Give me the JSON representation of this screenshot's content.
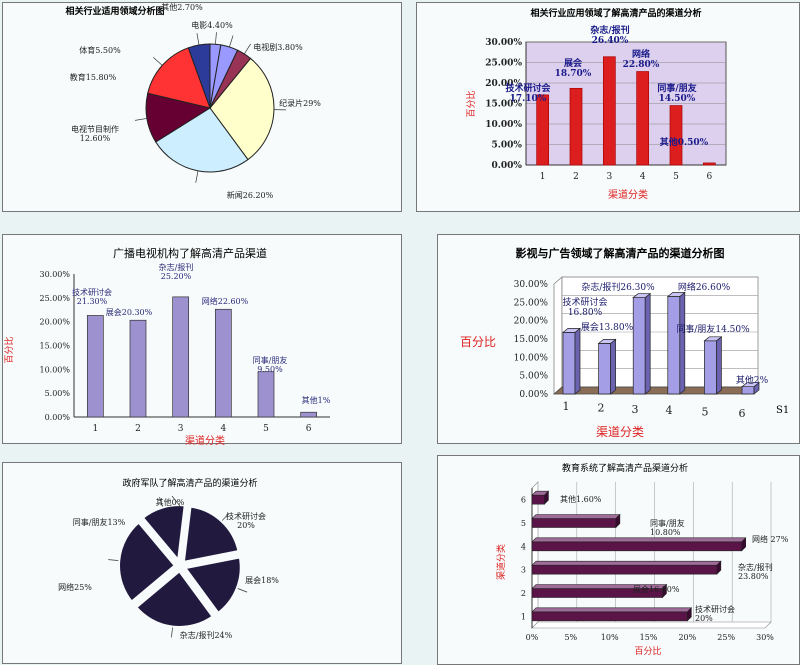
{
  "chart_data": [
    {
      "type": "pie",
      "title": "相关行业适用领域分析图",
      "slices": [
        {
          "label": "纪录片",
          "value": 29,
          "text": "纪录片29%",
          "color": "#ffffcc"
        },
        {
          "label": "新闻",
          "value": 26.2,
          "text": "新闻26.20%",
          "color": "#cceeff"
        },
        {
          "label": "电视节目制作",
          "value": 12.6,
          "text": "电视节目制作\n12.60%",
          "color": "#660033"
        },
        {
          "label": "教育",
          "value": 15.8,
          "text": "教育15.80%",
          "color": "#ff3333"
        },
        {
          "label": "体育",
          "value": 5.5,
          "text": "体育5.50%",
          "color": "#2c3a9a"
        },
        {
          "label": "其他",
          "value": 2.7,
          "text": "其他2.70%",
          "color": "#9999ff"
        },
        {
          "label": "电影",
          "value": 4.4,
          "text": "电影4.40%",
          "color": "#9999ff"
        },
        {
          "label": "电视剧",
          "value": 3.8,
          "text": "电视剧3.80%",
          "color": "#993355"
        }
      ]
    },
    {
      "type": "bar",
      "title": "相关行业应用领域了解高清产品的渠道分析",
      "xlabel": "渠道分类",
      "ylabel": "百分比",
      "categories": [
        "1",
        "2",
        "3",
        "4",
        "5",
        "6"
      ],
      "values": [
        17.1,
        18.7,
        26.4,
        22.8,
        14.5,
        0.5
      ],
      "labels": [
        "技术研讨会\n17.10%",
        "展会\n18.70%",
        "杂志/报刊\n26.40%",
        "网络\n22.80%",
        "同事/朋友\n14.50%",
        "其他0.50%"
      ],
      "ylim": [
        0,
        30
      ],
      "yticks": [
        "0.00%",
        "5.00%",
        "10.00%",
        "15.00%",
        "20.00%",
        "25.00%",
        "30.00%"
      ],
      "grid": true,
      "color": "#dc1e1e"
    },
    {
      "type": "bar",
      "title": "广播电视机构了解高清产品渠道",
      "xlabel": "渠道分类",
      "ylabel": "百分比",
      "categories": [
        "1",
        "2",
        "3",
        "4",
        "5",
        "6"
      ],
      "values": [
        21.3,
        20.3,
        25.2,
        22.6,
        9.5,
        1
      ],
      "labels": [
        "技术研讨会\n21.30%",
        "展会20.30%",
        "杂志/报刊\n25.20%",
        "网络22.60%",
        "同事/朋友\n9.50%",
        "其他1%"
      ],
      "ylim": [
        0,
        30
      ],
      "yticks": [
        "0.00%",
        "5.00%",
        "10.00%",
        "15.00%",
        "20.00%",
        "25.00%",
        "30.00%"
      ],
      "grid": false,
      "color": "#9d92cf"
    },
    {
      "type": "bar",
      "title": "影视与广告领域了解高清产品的渠道分析图",
      "xlabel": "渠道分类",
      "ylabel": "百分比",
      "series_name": "S1",
      "categories": [
        "1",
        "2",
        "3",
        "4",
        "5",
        "6"
      ],
      "values": [
        16.8,
        13.8,
        26.3,
        26.6,
        14.5,
        2
      ],
      "labels": [
        "技术研讨会\n16.80%",
        "展会13.80%",
        "杂志/报刊26.30%",
        "网络26.60%",
        "同事/朋友14.50%",
        "其他2%"
      ],
      "ylim": [
        0,
        30
      ],
      "yticks": [
        "0.00%",
        "5.00%",
        "10.00%",
        "15.00%",
        "20.00%",
        "25.00%",
        "30.00%"
      ],
      "grid": true,
      "color": "#a49ee6"
    },
    {
      "type": "pie",
      "title": "政府军队了解高清产品的渠道分析",
      "slices": [
        {
          "label": "技术研讨会",
          "value": 20,
          "text": "技术研讨会\n20%",
          "color": "#221a3e"
        },
        {
          "label": "展会",
          "value": 18,
          "text": "展会18%",
          "color": "#221a3e"
        },
        {
          "label": "杂志/报刊",
          "value": 24,
          "text": "杂志/报刊24%",
          "color": "#221a3e"
        },
        {
          "label": "网络",
          "value": 25,
          "text": "网络25%",
          "color": "#221a3e"
        },
        {
          "label": "同事/朋友",
          "value": 13,
          "text": "同事/朋友13%",
          "color": "#221a3e"
        },
        {
          "label": "其他",
          "value": 0,
          "text": "其他0%",
          "color": "#221a3e"
        }
      ]
    },
    {
      "type": "bar",
      "orientation": "horizontal",
      "title": "教育系统了解高清产品渠道分析",
      "xlabel": "百分比",
      "ylabel": "渠道分类",
      "categories": [
        "1",
        "2",
        "3",
        "4",
        "5",
        "6"
      ],
      "values": [
        20,
        16.8,
        23.8,
        27,
        10.8,
        1.6
      ],
      "labels": [
        "技术研讨会\n20%",
        "展会16.80%",
        "杂志/报刊\n23.80%",
        "网络 27%",
        "同事/朋友\n10.80%",
        "其他1.60%"
      ],
      "xlim": [
        0,
        30
      ],
      "xticks": [
        "0%",
        "5%",
        "10%",
        "15%",
        "20%",
        "25%",
        "30%"
      ],
      "grid": true,
      "color": "#5a1448"
    }
  ]
}
